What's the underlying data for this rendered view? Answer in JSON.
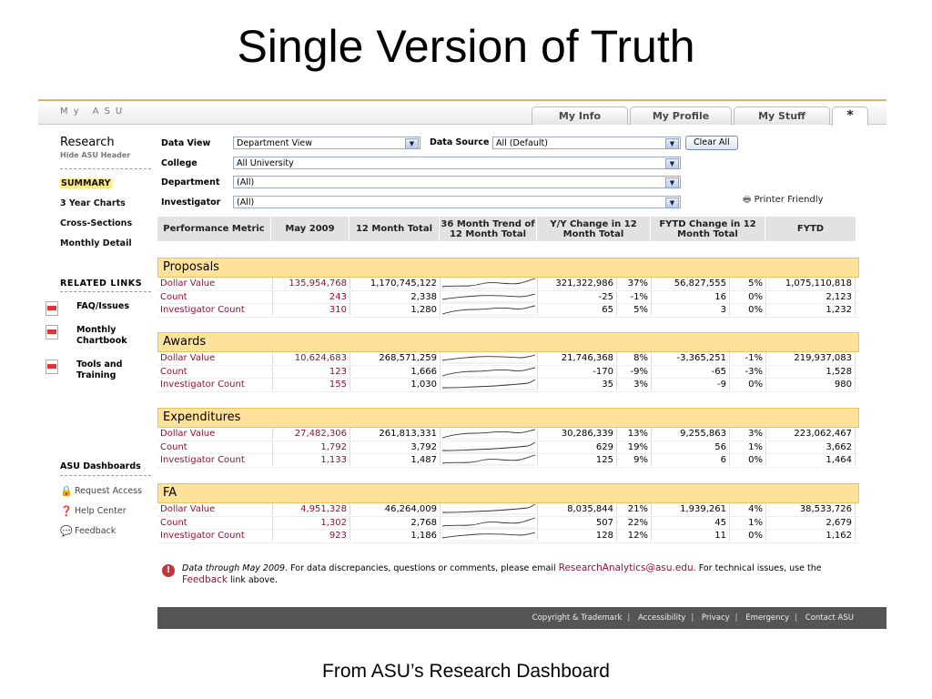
{
  "slide": {
    "title": "Single Version of Truth",
    "caption": "From ASU’s Research Dashboard"
  },
  "topbar": {
    "brand": "My ASU",
    "tabs": [
      "My Info",
      "My Profile",
      "My Stuff",
      "*"
    ]
  },
  "sidebar": {
    "title": "Research",
    "hide_header": "Hide ASU Header",
    "nav": [
      "SUMMARY",
      "3 Year Charts",
      "Cross-Sections",
      "Monthly Detail"
    ],
    "related_title": "RELATED LINKS",
    "related": [
      "FAQ/Issues",
      "Monthly Chartbook",
      "Tools and Training"
    ],
    "dash_title": "ASU Dashboards",
    "utilities": [
      "Request Access",
      "Help Center",
      "Feedback"
    ]
  },
  "filters": {
    "data_view_label": "Data View",
    "data_view_value": "Department View",
    "data_source_label": "Data Source",
    "data_source_value": "All (Default)",
    "clear_all": "Clear All",
    "college_label": "College",
    "college_value": "All University",
    "department_label": "Department",
    "department_value": "(All)",
    "investigator_label": "Investigator",
    "investigator_value": "(All)",
    "printer_friendly": "Printer Friendly"
  },
  "table": {
    "headers": [
      "Performance Metric",
      "May 2009",
      "12 Month Total",
      "36 Month Trend of 12 Month Total",
      "Y/Y Change in 12 Month Total",
      "FYTD Change in 12 Month Total",
      "FYTD"
    ],
    "sections": [
      {
        "name": "Proposals",
        "rows": [
          {
            "label": "Dollar Value",
            "may": "135,954,768",
            "m12": "1,170,745,122",
            "yy": "321,322,986",
            "yyp": "37%",
            "fy": "56,827,555",
            "fyp": "5%",
            "fytd": "1,075,110,818"
          },
          {
            "label": "Count",
            "may": "243",
            "m12": "2,338",
            "yy": "-25",
            "yyp": "-1%",
            "fy": "16",
            "fyp": "0%",
            "fytd": "2,123"
          },
          {
            "label": "Investigator Count",
            "may": "310",
            "m12": "1,280",
            "yy": "65",
            "yyp": "5%",
            "fy": "3",
            "fyp": "0%",
            "fytd": "1,232"
          }
        ]
      },
      {
        "name": "Awards",
        "rows": [
          {
            "label": "Dollar Value",
            "may": "10,624,683",
            "m12": "268,571,259",
            "yy": "21,746,368",
            "yyp": "8%",
            "fy": "-3,365,251",
            "fyp": "-1%",
            "fytd": "219,937,083"
          },
          {
            "label": "Count",
            "may": "123",
            "m12": "1,666",
            "yy": "-170",
            "yyp": "-9%",
            "fy": "-65",
            "fyp": "-3%",
            "fytd": "1,528"
          },
          {
            "label": "Investigator Count",
            "may": "155",
            "m12": "1,030",
            "yy": "35",
            "yyp": "3%",
            "fy": "-9",
            "fyp": "0%",
            "fytd": "980"
          }
        ]
      },
      {
        "name": "Expenditures",
        "rows": [
          {
            "label": "Dollar Value",
            "may": "27,482,306",
            "m12": "261,813,331",
            "yy": "30,286,339",
            "yyp": "13%",
            "fy": "9,255,863",
            "fyp": "3%",
            "fytd": "223,062,467"
          },
          {
            "label": "Count",
            "may": "1,792",
            "m12": "3,792",
            "yy": "629",
            "yyp": "19%",
            "fy": "56",
            "fyp": "1%",
            "fytd": "3,662"
          },
          {
            "label": "Investigator Count",
            "may": "1,133",
            "m12": "1,487",
            "yy": "125",
            "yyp": "9%",
            "fy": "6",
            "fyp": "0%",
            "fytd": "1,464"
          }
        ]
      },
      {
        "name": "FA",
        "rows": [
          {
            "label": "Dollar Value",
            "may": "4,951,328",
            "m12": "46,264,009",
            "yy": "8,035,844",
            "yyp": "21%",
            "fy": "1,939,261",
            "fyp": "4%",
            "fytd": "38,533,726"
          },
          {
            "label": "Count",
            "may": "1,302",
            "m12": "2,768",
            "yy": "507",
            "yyp": "22%",
            "fy": "45",
            "fyp": "1%",
            "fytd": "2,679"
          },
          {
            "label": "Investigator Count",
            "may": "923",
            "m12": "1,186",
            "yy": "128",
            "yyp": "12%",
            "fy": "11",
            "fyp": "0%",
            "fytd": "1,162"
          }
        ]
      }
    ]
  },
  "note": {
    "prefix": "Data through May 2009",
    "text1": ". For data discrepancies, questions or comments, please email ",
    "email": "ResearchAnalytics@asu.edu",
    "text2": ". For technical issues, use the ",
    "feedback": "Feedback",
    "text3": " link above."
  },
  "footer": [
    "Copyright & Trademark",
    "Accessibility",
    "Privacy",
    "Emergency",
    "Contact ASU"
  ],
  "colors": {
    "section_bar": "#ffe29a",
    "link": "#8a1538",
    "topbar_border": "#e3b35f",
    "footer_bg": "#555555"
  }
}
